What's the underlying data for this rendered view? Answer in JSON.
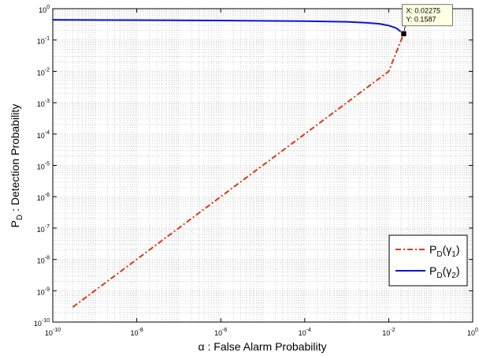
{
  "chart_data": {
    "type": "line",
    "xscale": "log",
    "yscale": "log",
    "xlim": [
      1e-10,
      1
    ],
    "ylim": [
      1e-10,
      1
    ],
    "grid": true,
    "legend_position": "bottom-right",
    "xlabel": "α : False Alarm Probability",
    "ylabel_main": "P",
    "ylabel_sub": "D",
    "ylabel_rest": " : Detection Probability",
    "x_ticks": [
      {
        "value": 1e-10,
        "label_exp": "-10"
      },
      {
        "value": 1e-08,
        "label_exp": "-8"
      },
      {
        "value": 1e-06,
        "label_exp": "-6"
      },
      {
        "value": 0.0001,
        "label_exp": "-4"
      },
      {
        "value": 0.01,
        "label_exp": "-2"
      },
      {
        "value": 1,
        "label_exp": "0"
      }
    ],
    "y_ticks": [
      {
        "value": 1e-10,
        "label_exp": "-10"
      },
      {
        "value": 1e-09,
        "label_exp": "-9"
      },
      {
        "value": 1e-08,
        "label_exp": "-8"
      },
      {
        "value": 1e-07,
        "label_exp": "-7"
      },
      {
        "value": 1e-06,
        "label_exp": "-6"
      },
      {
        "value": 1e-05,
        "label_exp": "-5"
      },
      {
        "value": 0.0001,
        "label_exp": "-4"
      },
      {
        "value": 0.001,
        "label_exp": "-3"
      },
      {
        "value": 0.01,
        "label_exp": "-2"
      },
      {
        "value": 0.1,
        "label_exp": "-1"
      },
      {
        "value": 1,
        "label_exp": "0"
      }
    ],
    "tick_base": "10",
    "series": [
      {
        "legend_main": "P",
        "legend_sub": "D",
        "legend_arg": "(γ",
        "legend_arg_sub": "1",
        "legend_close": ")",
        "color": "#d93a10",
        "style": "dash-dot",
        "x": [
          3e-10,
          1e-09,
          1e-08,
          1e-07,
          1e-06,
          1e-05,
          0.0001,
          0.001,
          0.01,
          0.02275
        ],
        "y": [
          3e-10,
          1e-09,
          1e-08,
          1e-07,
          1e-06,
          1e-05,
          0.0001,
          0.001,
          0.01,
          0.1587
        ]
      },
      {
        "legend_main": "P",
        "legend_sub": "D",
        "legend_arg": "(γ",
        "legend_arg_sub": "2",
        "legend_close": ")",
        "color": "#0a14d8",
        "style": "solid",
        "x": [
          1e-10,
          1e-08,
          1e-06,
          0.0001,
          0.001,
          0.003,
          0.006,
          0.01,
          0.015,
          0.02275
        ],
        "y": [
          0.44,
          0.43,
          0.42,
          0.4,
          0.38,
          0.355,
          0.33,
          0.29,
          0.24,
          0.1587
        ]
      }
    ],
    "datatip": {
      "x": 0.02275,
      "y": 0.1587,
      "line1": "X: 0.02275",
      "line2": "Y: 0.1587"
    }
  }
}
